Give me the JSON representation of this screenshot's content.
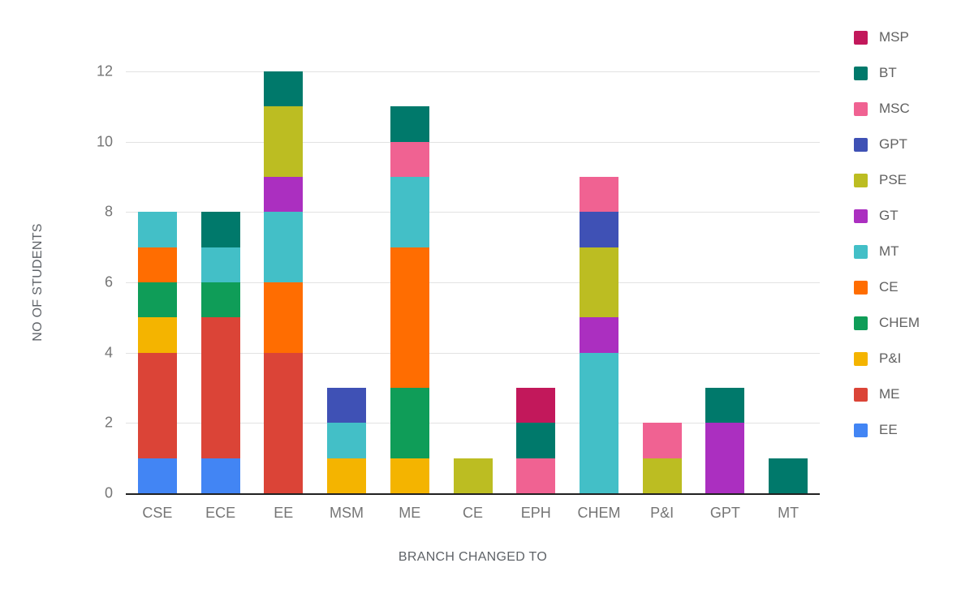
{
  "chart_data": {
    "type": "bar",
    "stacked": true,
    "xlabel": "BRANCH CHANGED TO",
    "ylabel": "NO OF STUDENTS",
    "ylim": [
      0,
      12
    ],
    "yticks": [
      0,
      2,
      4,
      6,
      8,
      10,
      12
    ],
    "grid": true,
    "legend_position": "right",
    "categories": [
      "CSE",
      "ECE",
      "EE",
      "MSM",
      "ME",
      "CE",
      "EPH",
      "CHEM",
      "P&I",
      "GPT",
      "MT"
    ],
    "series": [
      {
        "name": "EE",
        "color": "#4285F4",
        "values": [
          1,
          1,
          0,
          0,
          0,
          0,
          0,
          0,
          0,
          0,
          0
        ]
      },
      {
        "name": "ME",
        "color": "#DB4437",
        "values": [
          3,
          4,
          4,
          0,
          0,
          0,
          0,
          0,
          0,
          0,
          0
        ]
      },
      {
        "name": "P&I",
        "color": "#F4B400",
        "values": [
          1,
          0,
          0,
          1,
          1,
          0,
          0,
          0,
          0,
          0,
          0
        ]
      },
      {
        "name": "CHEM",
        "color": "#0F9D58",
        "values": [
          1,
          1,
          0,
          0,
          2,
          0,
          0,
          0,
          0,
          0,
          0
        ]
      },
      {
        "name": "CE",
        "color": "#FF6D01",
        "values": [
          1,
          0,
          2,
          0,
          4,
          0,
          0,
          0,
          0,
          0,
          0
        ]
      },
      {
        "name": "MT",
        "color": "#43BFC7",
        "values": [
          1,
          1,
          2,
          1,
          2,
          0,
          0,
          4,
          0,
          0,
          0
        ]
      },
      {
        "name": "GT",
        "color": "#AB2FC0",
        "values": [
          0,
          0,
          1,
          0,
          0,
          0,
          0,
          1,
          0,
          2,
          0
        ]
      },
      {
        "name": "PSE",
        "color": "#BCBD22",
        "values": [
          0,
          0,
          2,
          0,
          0,
          1,
          0,
          2,
          1,
          0,
          0
        ]
      },
      {
        "name": "GPT",
        "color": "#3F51B5",
        "values": [
          0,
          0,
          0,
          1,
          0,
          0,
          0,
          1,
          0,
          0,
          0
        ]
      },
      {
        "name": "MSC",
        "color": "#F06292",
        "values": [
          0,
          0,
          0,
          0,
          1,
          0,
          1,
          1,
          1,
          0,
          0
        ]
      },
      {
        "name": "BT",
        "color": "#00796B",
        "values": [
          0,
          1,
          1,
          0,
          1,
          0,
          1,
          0,
          0,
          1,
          1
        ]
      },
      {
        "name": "MSP",
        "color": "#C2185B",
        "values": [
          0,
          0,
          0,
          0,
          0,
          0,
          1,
          0,
          0,
          0,
          0
        ]
      }
    ],
    "bar_totals": {
      "CSE": 8,
      "ECE": 8,
      "EE": 12,
      "MSM": 3,
      "ME": 11,
      "CE": 1,
      "EPH": 3,
      "CHEM": 9,
      "P&I": 2,
      "GPT": 3,
      "MT": 1
    },
    "legend_order": [
      "MSP",
      "BT",
      "MSC",
      "GPT",
      "PSE",
      "GT",
      "MT",
      "CE",
      "CHEM",
      "P&I",
      "ME",
      "EE"
    ]
  }
}
